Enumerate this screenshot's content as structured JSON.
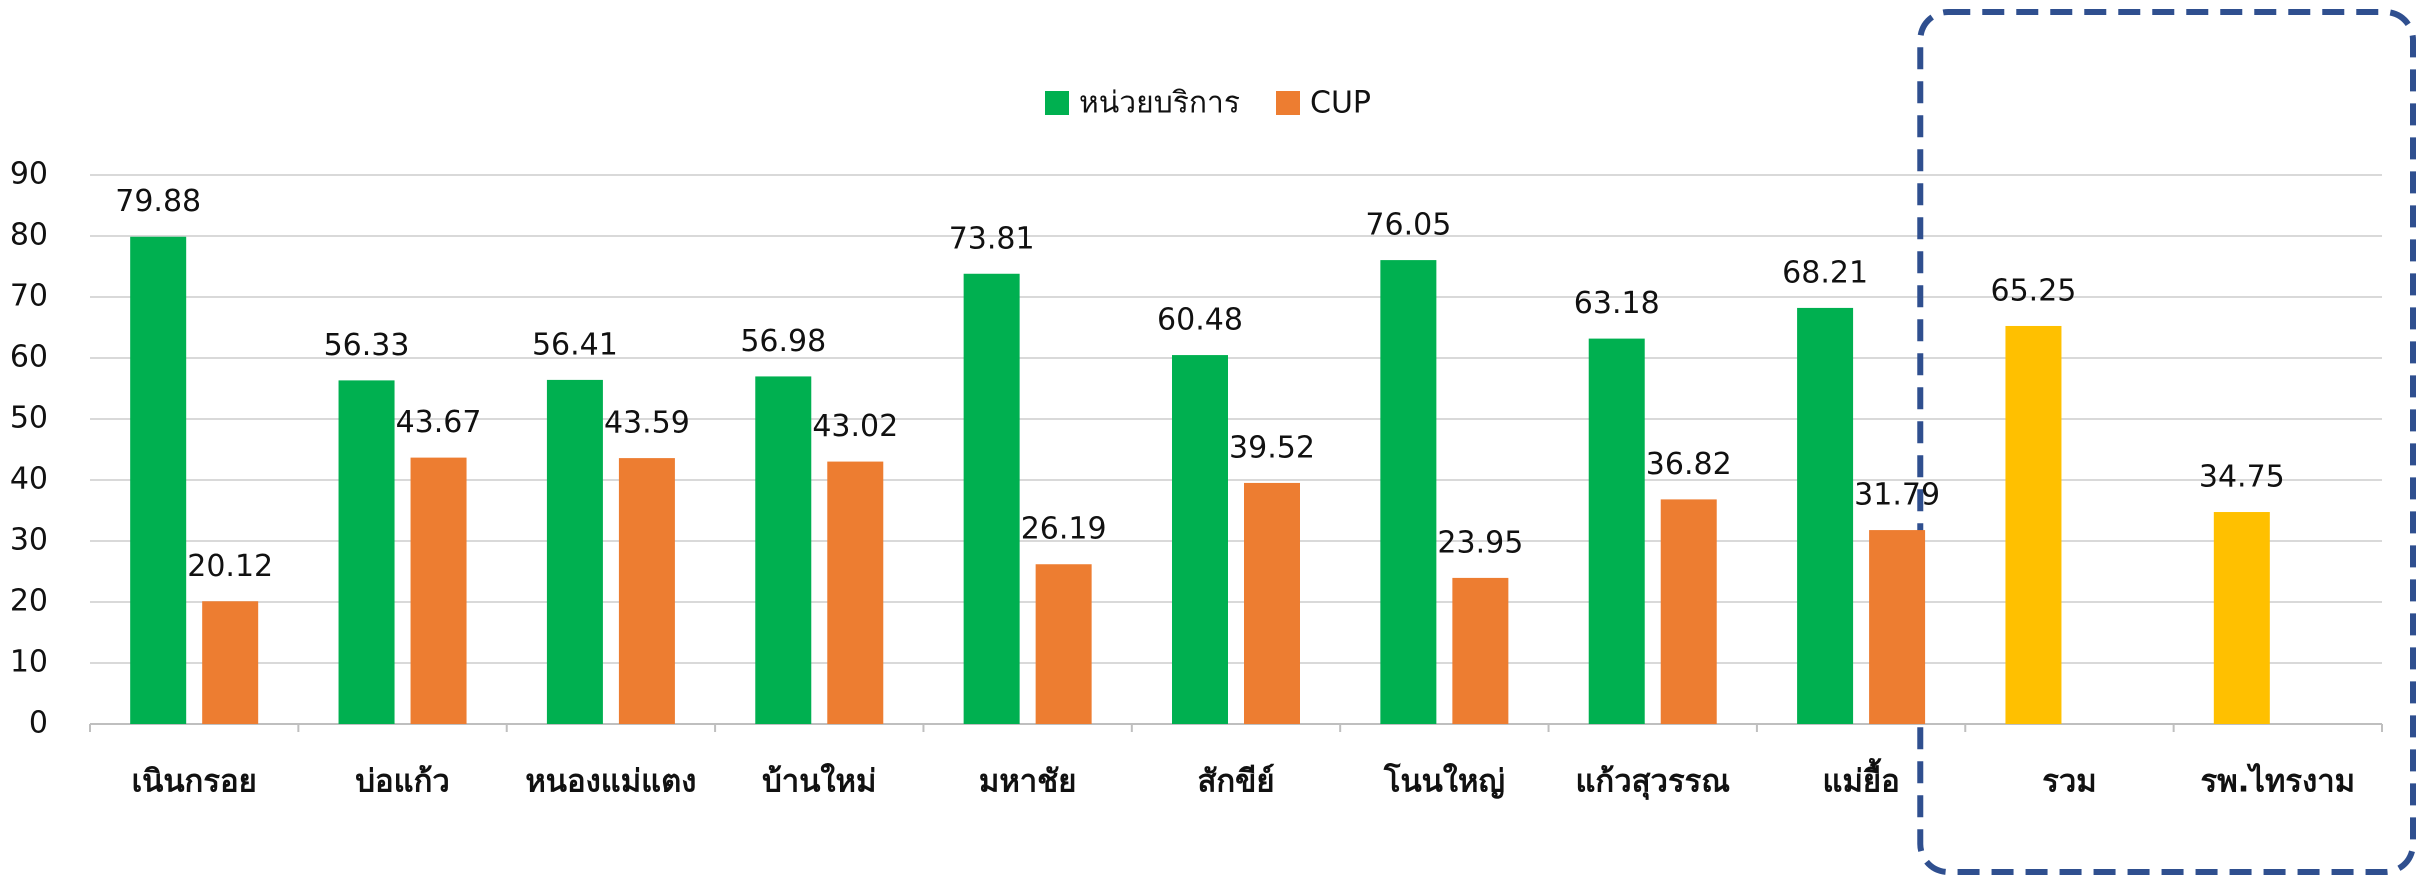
{
  "chart_data": {
    "type": "bar",
    "categories": [
      "เนินกรอย",
      "บ่อแก้ว",
      "หนองแม่แตง",
      "บ้านใหม่",
      "มหาชัย",
      "สักขีย์",
      "โนนใหญ่",
      "แก้วสุวรรณ",
      "แม่ยื้อ",
      "รวม",
      "รพ.ไทรงาม"
    ],
    "series": [
      {
        "name": "หน่วยบริการ",
        "color": "#00b050",
        "point_colors": [
          "#00b050",
          "#00b050",
          "#00b050",
          "#00b050",
          "#00b050",
          "#00b050",
          "#00b050",
          "#00b050",
          "#00b050",
          "#ffc000",
          "#ffc000"
        ],
        "values": [
          79.88,
          56.33,
          56.41,
          56.98,
          73.81,
          60.48,
          76.05,
          63.18,
          68.21,
          65.25,
          34.75
        ]
      },
      {
        "name": "CUP",
        "color": "#ed7d31",
        "values": [
          20.12,
          43.67,
          43.59,
          43.02,
          26.19,
          39.52,
          23.95,
          36.82,
          31.79,
          null,
          null
        ]
      }
    ],
    "ylim": [
      0,
      90
    ],
    "yticks": [
      0,
      10,
      20,
      30,
      40,
      50,
      60,
      70,
      80,
      90
    ],
    "grid": true,
    "legend": "top"
  }
}
